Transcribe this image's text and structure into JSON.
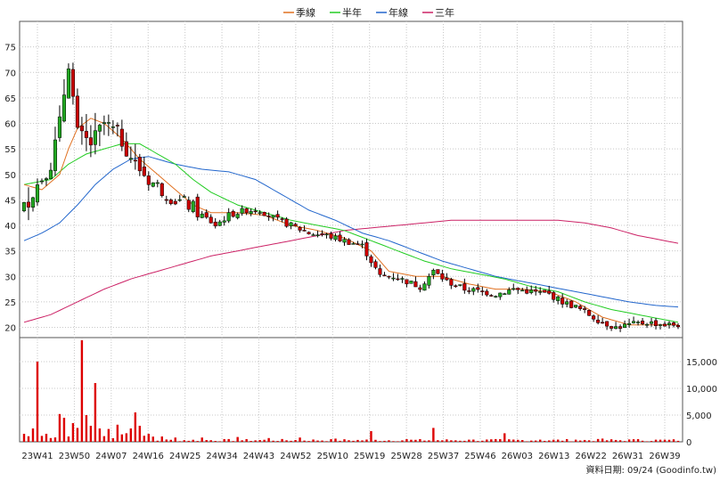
{
  "chart_data": {
    "type": "candlestick",
    "legend": {
      "placement": "top-center",
      "items": [
        {
          "name": "季線",
          "color": "#e07020"
        },
        {
          "name": "半年",
          "color": "#22cc22"
        },
        {
          "name": "年線",
          "color": "#2266cc"
        },
        {
          "name": "三年",
          "color": "#cc2266"
        }
      ]
    },
    "price_axis": {
      "ylim": [
        18,
        80
      ],
      "ticks": [
        20,
        25,
        30,
        35,
        40,
        45,
        50,
        55,
        60,
        65,
        70,
        75
      ]
    },
    "volume_axis": {
      "ylim": [
        0,
        19500
      ],
      "ticks": [
        0,
        5000,
        10000,
        15000
      ],
      "tick_labels": [
        "0",
        "5,000",
        "10,000",
        "15,000"
      ]
    },
    "x_tick_labels": [
      "23W41",
      "23W50",
      "24W07",
      "24W16",
      "24W25",
      "24W34",
      "24W43",
      "24W52",
      "25W10",
      "25W19",
      "25W28",
      "25W37",
      "25W46",
      "26W03",
      "26W13",
      "26W22",
      "26W31",
      "26W39"
    ],
    "grid": true,
    "up_color": "#22aa22",
    "down_color": "#cc0000",
    "volume_color": "#dd0000",
    "source_note": "資料日期: 09/24 (Goodinfo.tw)",
    "anchors": {
      "close": [
        [
          0,
          43.5
        ],
        [
          3,
          48
        ],
        [
          6,
          52
        ],
        [
          8,
          60
        ],
        [
          9,
          66
        ],
        [
          10,
          72
        ],
        [
          12,
          58
        ],
        [
          15,
          56
        ],
        [
          18,
          60
        ],
        [
          21,
          58
        ],
        [
          23,
          55
        ],
        [
          25,
          52
        ],
        [
          28,
          49
        ],
        [
          31,
          47
        ],
        [
          34,
          45
        ],
        [
          37,
          44
        ],
        [
          40,
          42
        ],
        [
          43,
          40
        ],
        [
          46,
          42
        ],
        [
          50,
          43
        ],
        [
          53,
          43
        ],
        [
          57,
          41
        ],
        [
          60,
          40
        ],
        [
          64,
          38.5
        ],
        [
          68,
          38
        ],
        [
          72,
          37
        ],
        [
          76,
          36
        ],
        [
          80,
          30
        ],
        [
          83,
          30
        ],
        [
          86,
          29
        ],
        [
          89,
          28
        ],
        [
          92,
          31
        ],
        [
          95,
          29
        ],
        [
          99,
          27.5
        ],
        [
          103,
          27
        ],
        [
          106,
          26.5
        ],
        [
          110,
          27.5
        ],
        [
          114,
          27
        ],
        [
          118,
          26.5
        ],
        [
          121,
          25
        ],
        [
          124,
          24
        ],
        [
          127,
          22.5
        ],
        [
          130,
          21
        ],
        [
          133,
          20
        ],
        [
          136,
          20.5
        ],
        [
          140,
          21
        ],
        [
          144,
          20.5
        ],
        [
          147,
          20.5
        ]
      ],
      "ma_q": [
        [
          0,
          48
        ],
        [
          4,
          47
        ],
        [
          8,
          50
        ],
        [
          10,
          55
        ],
        [
          12,
          59
        ],
        [
          15,
          61
        ],
        [
          18,
          60
        ],
        [
          22,
          57
        ],
        [
          26,
          53
        ],
        [
          30,
          50
        ],
        [
          34,
          47
        ],
        [
          38,
          44
        ],
        [
          42,
          42.5
        ],
        [
          48,
          42.5
        ],
        [
          54,
          42
        ],
        [
          60,
          40
        ],
        [
          66,
          39
        ],
        [
          72,
          37.5
        ],
        [
          78,
          35
        ],
        [
          82,
          31
        ],
        [
          88,
          30
        ],
        [
          94,
          30
        ],
        [
          100,
          28.5
        ],
        [
          106,
          27.5
        ],
        [
          112,
          27.5
        ],
        [
          118,
          27
        ],
        [
          124,
          25
        ],
        [
          130,
          22
        ],
        [
          136,
          20.5
        ],
        [
          142,
          20.5
        ],
        [
          147,
          20.5
        ]
      ],
      "ma_h": [
        [
          0,
          48
        ],
        [
          6,
          49
        ],
        [
          10,
          52
        ],
        [
          14,
          54
        ],
        [
          18,
          55
        ],
        [
          22,
          56
        ],
        [
          26,
          56
        ],
        [
          30,
          54
        ],
        [
          34,
          52
        ],
        [
          38,
          49
        ],
        [
          42,
          46.5
        ],
        [
          48,
          44
        ],
        [
          54,
          42.5
        ],
        [
          60,
          41
        ],
        [
          66,
          40
        ],
        [
          72,
          39
        ],
        [
          78,
          37
        ],
        [
          84,
          35
        ],
        [
          90,
          33
        ],
        [
          96,
          31.5
        ],
        [
          102,
          30.5
        ],
        [
          108,
          29.5
        ],
        [
          114,
          28
        ],
        [
          120,
          27
        ],
        [
          126,
          25
        ],
        [
          132,
          23.5
        ],
        [
          138,
          22.5
        ],
        [
          144,
          21.5
        ],
        [
          147,
          21
        ]
      ],
      "ma_y": [
        [
          0,
          37
        ],
        [
          4,
          38.5
        ],
        [
          8,
          40.5
        ],
        [
          12,
          44
        ],
        [
          16,
          48
        ],
        [
          20,
          51
        ],
        [
          24,
          53
        ],
        [
          28,
          53.5
        ],
        [
          34,
          52
        ],
        [
          40,
          51
        ],
        [
          46,
          50.5
        ],
        [
          52,
          49
        ],
        [
          58,
          46
        ],
        [
          64,
          43
        ],
        [
          70,
          41
        ],
        [
          76,
          38.5
        ],
        [
          82,
          37
        ],
        [
          88,
          35
        ],
        [
          94,
          33
        ],
        [
          100,
          31.5
        ],
        [
          106,
          30
        ],
        [
          112,
          29
        ],
        [
          118,
          28
        ],
        [
          124,
          27
        ],
        [
          130,
          26
        ],
        [
          136,
          25
        ],
        [
          142,
          24.3
        ],
        [
          147,
          24
        ]
      ],
      "ma_3y": [
        [
          0,
          21
        ],
        [
          6,
          22.5
        ],
        [
          12,
          25
        ],
        [
          18,
          27.5
        ],
        [
          24,
          29.5
        ],
        [
          30,
          31
        ],
        [
          36,
          32.5
        ],
        [
          42,
          34
        ],
        [
          48,
          35
        ],
        [
          54,
          36
        ],
        [
          60,
          37
        ],
        [
          66,
          38
        ],
        [
          72,
          39
        ],
        [
          78,
          39.5
        ],
        [
          84,
          40
        ],
        [
          90,
          40.5
        ],
        [
          96,
          41
        ],
        [
          102,
          41
        ],
        [
          108,
          41
        ],
        [
          114,
          41
        ],
        [
          120,
          41
        ],
        [
          126,
          40.5
        ],
        [
          132,
          39.5
        ],
        [
          138,
          38
        ],
        [
          144,
          37
        ],
        [
          147,
          36.5
        ]
      ],
      "volume_spikes": [
        [
          0,
          1500
        ],
        [
          2,
          2500
        ],
        [
          3,
          15000
        ],
        [
          5,
          1500
        ],
        [
          8,
          5200
        ],
        [
          9,
          4500
        ],
        [
          11,
          3500
        ],
        [
          12,
          2600
        ],
        [
          13,
          19000
        ],
        [
          14,
          5000
        ],
        [
          15,
          3000
        ],
        [
          16,
          11000
        ],
        [
          17,
          2500
        ],
        [
          19,
          2400
        ],
        [
          21,
          3200
        ],
        [
          23,
          1600
        ],
        [
          24,
          2500
        ],
        [
          25,
          5500
        ],
        [
          26,
          3000
        ],
        [
          28,
          1500
        ],
        [
          31,
          1000
        ],
        [
          34,
          800
        ],
        [
          40,
          800
        ],
        [
          48,
          900
        ],
        [
          55,
          700
        ],
        [
          62,
          800
        ],
        [
          70,
          600
        ],
        [
          78,
          2000
        ],
        [
          86,
          500
        ],
        [
          92,
          2600
        ],
        [
          100,
          400
        ],
        [
          108,
          1600
        ],
        [
          116,
          400
        ],
        [
          124,
          400
        ],
        [
          130,
          600
        ],
        [
          138,
          500
        ],
        [
          144,
          400
        ]
      ]
    }
  }
}
